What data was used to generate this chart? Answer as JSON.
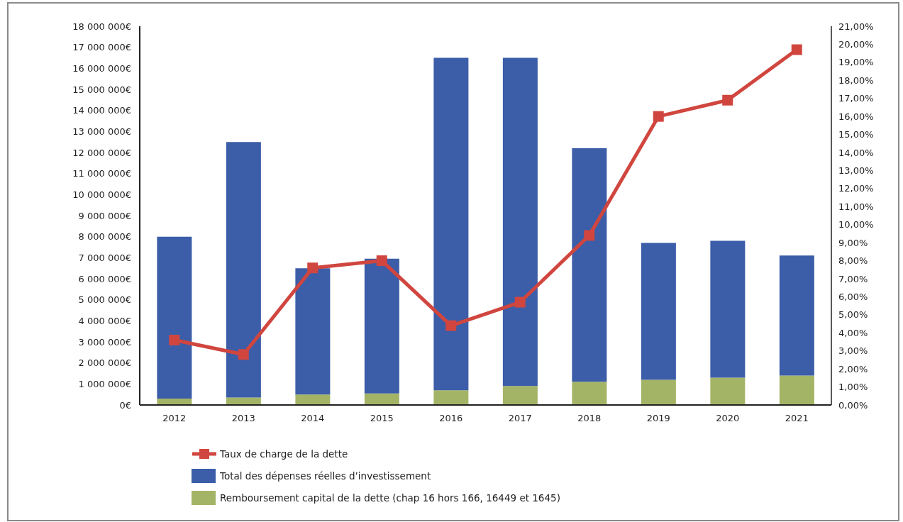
{
  "chart_data": {
    "type": "bar",
    "categories": [
      "2012",
      "2013",
      "2014",
      "2015",
      "2016",
      "2017",
      "2018",
      "2019",
      "2020",
      "2021"
    ],
    "series": [
      {
        "name": "Remboursement capital de la dette (chap 16 hors 166, 16449 et 1645)",
        "color": "#a4b466",
        "values": [
          300000,
          350000,
          500000,
          550000,
          700000,
          900000,
          1100000,
          1200000,
          1300000,
          1400000
        ]
      },
      {
        "name": "Total des dépenses réelles d’investissement",
        "color": "#3c5da8",
        "values": [
          7700000,
          12150000,
          6000000,
          6400000,
          15800000,
          15600000,
          11100000,
          6500000,
          6500000,
          5700000
        ]
      },
      {
        "name": "Taux de charge de la dette",
        "type": "line",
        "axis": "y2",
        "color": "#d0463f",
        "values": [
          3.6,
          2.8,
          7.6,
          8.0,
          4.4,
          5.7,
          9.4,
          16.0,
          16.9,
          19.7
        ]
      }
    ],
    "stacked": true,
    "marker": "square",
    "legend": "bottom",
    "grid": false,
    "ylim": [
      0,
      18000000
    ],
    "yticks": [
      {
        "value": 0,
        "label": "0€"
      },
      {
        "value": 1000000,
        "label": "1 000 000€"
      },
      {
        "value": 2000000,
        "label": "2 000 000€"
      },
      {
        "value": 3000000,
        "label": "3 000 000€"
      },
      {
        "value": 4000000,
        "label": "4 000 000€"
      },
      {
        "value": 5000000,
        "label": "5 000 000€"
      },
      {
        "value": 6000000,
        "label": "6 000 000€"
      },
      {
        "value": 7000000,
        "label": "7 000 000€"
      },
      {
        "value": 8000000,
        "label": "8 000 000€"
      },
      {
        "value": 9000000,
        "label": "9 000 000€"
      },
      {
        "value": 10000000,
        "label": "10 000 000€"
      },
      {
        "value": 11000000,
        "label": "11 000 000€"
      },
      {
        "value": 12000000,
        "label": "12 000 000€"
      },
      {
        "value": 13000000,
        "label": "13 000 000€"
      },
      {
        "value": 14000000,
        "label": "14 000 000€"
      },
      {
        "value": 15000000,
        "label": "15 000 000€"
      },
      {
        "value": 16000000,
        "label": "16 000 000€"
      },
      {
        "value": 17000000,
        "label": "17 000 000€"
      },
      {
        "value": 18000000,
        "label": "18 000 000€"
      }
    ],
    "y2lim": [
      0,
      21
    ],
    "y2ticks": [
      {
        "value": 0,
        "label": "0,00%"
      },
      {
        "value": 1,
        "label": "1,00%"
      },
      {
        "value": 2,
        "label": "2,00%"
      },
      {
        "value": 3,
        "label": "3,00%"
      },
      {
        "value": 4,
        "label": "4,00%"
      },
      {
        "value": 5,
        "label": "5,00%"
      },
      {
        "value": 6,
        "label": "6,00%"
      },
      {
        "value": 7,
        "label": "7,00%"
      },
      {
        "value": 8,
        "label": "8,00%"
      },
      {
        "value": 9,
        "label": "9,00%"
      },
      {
        "value": 10,
        "label": "10,00%"
      },
      {
        "value": 11,
        "label": "11,00%"
      },
      {
        "value": 12,
        "label": "12,00%"
      },
      {
        "value": 13,
        "label": "13,00%"
      },
      {
        "value": 14,
        "label": "14,00%"
      },
      {
        "value": 15,
        "label": "15,00%"
      },
      {
        "value": 16,
        "label": "16,00%"
      },
      {
        "value": 17,
        "label": "17,00%"
      },
      {
        "value": 18,
        "label": "18,00%"
      },
      {
        "value": 19,
        "label": "19,00%"
      },
      {
        "value": 20,
        "label": "20,00%"
      },
      {
        "value": 21,
        "label": "21,00%"
      }
    ]
  }
}
